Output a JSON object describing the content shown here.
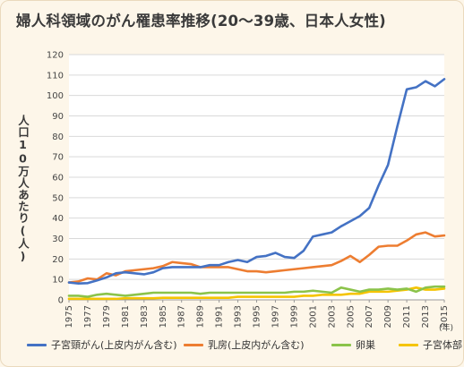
{
  "title": "婦人科領域のがん罹患率推移(20〜39歳、日本人女性)",
  "chart_data": {
    "type": "line",
    "ylabel": "人口10万人あたり(人)",
    "xlabel_unit": "(年)",
    "ylim": [
      0,
      120
    ],
    "yticks": [
      0,
      10,
      20,
      30,
      40,
      50,
      60,
      70,
      80,
      90,
      100,
      110,
      120
    ],
    "xticks": [
      1975,
      1977,
      1979,
      1981,
      1983,
      1985,
      1987,
      1989,
      1991,
      1993,
      1995,
      1997,
      1999,
      2001,
      2003,
      2005,
      2007,
      2009,
      2011,
      2013,
      2015
    ],
    "x": [
      1975,
      1976,
      1977,
      1978,
      1979,
      1980,
      1981,
      1982,
      1983,
      1984,
      1985,
      1986,
      1987,
      1988,
      1989,
      1990,
      1991,
      1992,
      1993,
      1994,
      1995,
      1996,
      1997,
      1998,
      1999,
      2000,
      2001,
      2002,
      2003,
      2004,
      2005,
      2006,
      2007,
      2008,
      2009,
      2010,
      2011,
      2012,
      2013,
      2014,
      2015
    ],
    "grid": true,
    "legend_position": "bottom",
    "series": [
      {
        "name": "子宮頸がん(上皮内がん含む)",
        "color": "#4472c4",
        "values": [
          8.5,
          8,
          8.2,
          9.5,
          11,
          13,
          13.5,
          13,
          12.5,
          13.5,
          15.5,
          16,
          16,
          16,
          16,
          17,
          17,
          18.5,
          19.5,
          18.5,
          21,
          21.5,
          23,
          21,
          20.5,
          24,
          31,
          32,
          33,
          36,
          38.5,
          41,
          45,
          56,
          66,
          85,
          103,
          104,
          107,
          104.5,
          108
        ]
      },
      {
        "name": "乳房(上皮内がん含む)",
        "color": "#ed7d31",
        "values": [
          8.5,
          9,
          10.5,
          10,
          13,
          12,
          14,
          14.5,
          15,
          15.5,
          16.5,
          18.5,
          18,
          17.5,
          16,
          16,
          16,
          16,
          15,
          14,
          14,
          13.5,
          14,
          14.5,
          15,
          15.5,
          16,
          16.5,
          17,
          19,
          21.5,
          18.5,
          22,
          26,
          26.5,
          26.5,
          29,
          32,
          33,
          31,
          31.5
        ]
      },
      {
        "name": "卵巣",
        "color": "#8bc34a",
        "values": [
          2,
          2,
          1.5,
          2.5,
          3,
          2.5,
          2,
          2.5,
          3,
          3.5,
          3.5,
          3.5,
          3.5,
          3.5,
          3,
          3.5,
          3.5,
          3.5,
          3.5,
          3.5,
          3.5,
          3.5,
          3.5,
          3.5,
          4,
          4,
          4.5,
          4,
          3.5,
          6,
          5,
          4,
          5,
          5,
          5.5,
          5,
          5.5,
          4,
          6,
          6.5,
          6.5
        ]
      },
      {
        "name": "子宮体部",
        "color": "#f5c400",
        "values": [
          0.5,
          0.5,
          0.5,
          0.5,
          0.5,
          0.5,
          0.8,
          0.8,
          0.8,
          0.8,
          1,
          1,
          1,
          1,
          1,
          1,
          1,
          1,
          1.5,
          1.5,
          1.5,
          1.5,
          1.5,
          1.5,
          1.5,
          2,
          2,
          2.5,
          2.5,
          2.5,
          3,
          3,
          4,
          4,
          4,
          4.5,
          5,
          6,
          5,
          5,
          5.5
        ]
      }
    ]
  }
}
